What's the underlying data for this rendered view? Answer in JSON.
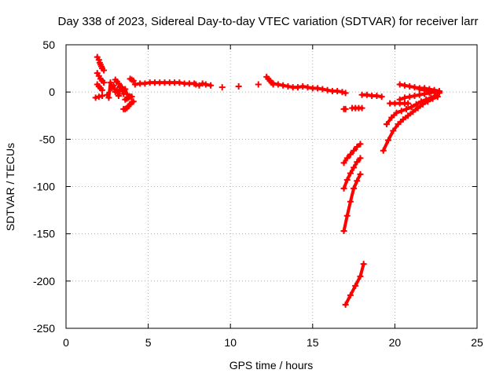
{
  "chart_data": {
    "type": "scatter",
    "title": "Day 338 of 2023, Sidereal Day-to-day VTEC variation (SDTVAR) for receiver larr",
    "xlabel": "GPS time / hours",
    "ylabel": "SDTVAR / TECUs",
    "xlim": [
      0,
      25
    ],
    "ylim": [
      -250,
      50
    ],
    "xticks": [
      0,
      5,
      10,
      15,
      20,
      25
    ],
    "yticks": [
      -250,
      -200,
      -150,
      -100,
      -50,
      0,
      50
    ],
    "xtick_labels": [
      "0",
      "5",
      "10",
      "15",
      "20",
      "25"
    ],
    "ytick_labels": [
      "-250",
      "-200",
      "-150",
      "-100",
      "-50",
      "0",
      "50"
    ],
    "grid": true,
    "marker": "+",
    "series_color": "#ff0000",
    "series": [
      {
        "x": [
          1.9,
          2.0,
          2.05,
          2.1,
          2.15,
          2.2,
          2.3
        ],
        "y": [
          37,
          34,
          31,
          29,
          27,
          25,
          23
        ]
      },
      {
        "x": [
          1.9,
          2.0,
          2.1,
          2.2,
          2.3
        ],
        "y": [
          20,
          17,
          14,
          12,
          10
        ]
      },
      {
        "x": [
          1.9,
          2.0,
          2.1,
          2.2
        ],
        "y": [
          8,
          6,
          4,
          2
        ]
      },
      {
        "x": [
          1.8,
          2.0,
          2.2
        ],
        "y": [
          -6,
          -5,
          -4
        ]
      },
      {
        "x": [
          2.5,
          2.6,
          2.7,
          2.8,
          2.9,
          3.0,
          3.1,
          3.2,
          3.3,
          3.4,
          3.5,
          3.6,
          3.7
        ],
        "y": [
          -3,
          -6,
          10,
          4,
          7,
          0,
          2,
          -4,
          6,
          5,
          1,
          3,
          -2
        ]
      },
      {
        "x": [
          3.0,
          3.1,
          3.2,
          3.3,
          3.4,
          3.5
        ],
        "y": [
          13,
          11,
          9,
          5,
          3,
          -2
        ]
      },
      {
        "x": [
          3.6,
          3.7,
          3.8,
          3.9,
          4.0
        ],
        "y": [
          -8,
          -7,
          -6,
          -5,
          -5
        ]
      },
      {
        "x": [
          3.5,
          3.6,
          3.7,
          3.8,
          3.9,
          4.0,
          4.1
        ],
        "y": [
          -18,
          -18,
          -17,
          -15,
          -13,
          -11,
          -10
        ]
      },
      {
        "x": [
          3.9,
          4.0,
          4.1
        ],
        "y": [
          14,
          13,
          12
        ]
      },
      {
        "x": [
          4.2,
          4.5,
          4.8,
          5.1,
          5.4,
          5.7,
          6.0,
          6.3,
          6.6,
          6.9,
          7.2,
          7.5,
          7.8
        ],
        "y": [
          8,
          9,
          9,
          10,
          10,
          10,
          10,
          10,
          10,
          10,
          9,
          9,
          9
        ]
      },
      {
        "x": [
          7.9,
          8.1,
          8.3,
          8.5,
          8.8
        ],
        "y": [
          8,
          7,
          9,
          8,
          7
        ]
      },
      {
        "x": [
          9.5
        ],
        "y": [
          5
        ]
      },
      {
        "x": [
          10.5
        ],
        "y": [
          6
        ]
      },
      {
        "x": [
          11.7
        ],
        "y": [
          8
        ]
      },
      {
        "x": [
          12.2,
          12.3,
          12.4,
          12.5,
          12.6
        ],
        "y": [
          16,
          14,
          12,
          10,
          8
        ]
      },
      {
        "x": [
          12.6,
          12.9,
          13.2,
          13.5,
          13.8,
          14.1,
          14.4,
          14.7,
          15.0,
          15.3,
          15.6,
          15.9,
          16.2,
          16.5,
          16.8,
          17.0
        ],
        "y": [
          9,
          8,
          7,
          6,
          5,
          5,
          6,
          5,
          4,
          4,
          3,
          2,
          1,
          1,
          0,
          -1
        ]
      },
      {
        "x": [
          16.9,
          17.0
        ],
        "y": [
          -18,
          -18
        ]
      },
      {
        "x": [
          17.4,
          17.6,
          17.8,
          18.0
        ],
        "y": [
          -17,
          -17,
          -17,
          -17
        ]
      },
      {
        "x": [
          18.0,
          18.3,
          18.6,
          18.9,
          19.2
        ],
        "y": [
          -3,
          -3,
          -4,
          -4,
          -5
        ]
      },
      {
        "x": [
          16.9,
          17.1,
          17.3,
          17.5,
          17.7,
          17.9
        ],
        "y": [
          -75,
          -70,
          -66,
          -62,
          -58,
          -55
        ]
      },
      {
        "x": [
          16.9,
          17.1,
          17.3,
          17.5,
          17.7,
          17.9
        ],
        "y": [
          -102,
          -93,
          -86,
          -80,
          -74,
          -70
        ]
      },
      {
        "x": [
          16.9,
          17.1,
          17.3,
          17.5,
          17.7,
          17.9
        ],
        "y": [
          -147,
          -131,
          -116,
          -102,
          -94,
          -87
        ]
      },
      {
        "x": [
          17.0,
          17.3,
          17.6,
          17.9,
          18.1
        ],
        "y": [
          -225,
          -215,
          -205,
          -195,
          -182
        ]
      },
      {
        "x": [
          19.3,
          19.6,
          19.9,
          20.2,
          20.5,
          20.8,
          21.1,
          21.4,
          21.7,
          22.0,
          22.3,
          22.6
        ],
        "y": [
          -62,
          -51,
          -41,
          -34,
          -29,
          -25,
          -21,
          -17,
          -13,
          -10,
          -7,
          -5
        ]
      },
      {
        "x": [
          19.5,
          19.8,
          20.1,
          20.4,
          20.7,
          21.0,
          21.3,
          21.6,
          21.9,
          22.2,
          22.5
        ],
        "y": [
          -34,
          -27,
          -22,
          -20,
          -18,
          -16,
          -13,
          -10,
          -8,
          -6,
          -4
        ]
      },
      {
        "x": [
          19.7,
          20.0,
          20.3,
          20.6,
          20.8
        ],
        "y": [
          -12,
          -12,
          -12,
          -12,
          -12
        ]
      },
      {
        "x": [
          20.3,
          20.6,
          20.9,
          21.2,
          21.5,
          21.8,
          22.1,
          22.4,
          22.7
        ],
        "y": [
          -8,
          -6,
          -5,
          -4,
          -3,
          -2,
          -1,
          0,
          0
        ]
      },
      {
        "x": [
          20.3,
          20.6,
          20.9,
          21.2,
          21.5,
          21.8,
          22.1,
          22.4,
          22.7
        ],
        "y": [
          8,
          7,
          6,
          5,
          4,
          4,
          3,
          2,
          1
        ]
      },
      {
        "x": [
          21.5,
          21.8,
          22.1,
          22.4,
          22.7
        ],
        "y": [
          3,
          2,
          1,
          0,
          -1
        ]
      }
    ]
  }
}
